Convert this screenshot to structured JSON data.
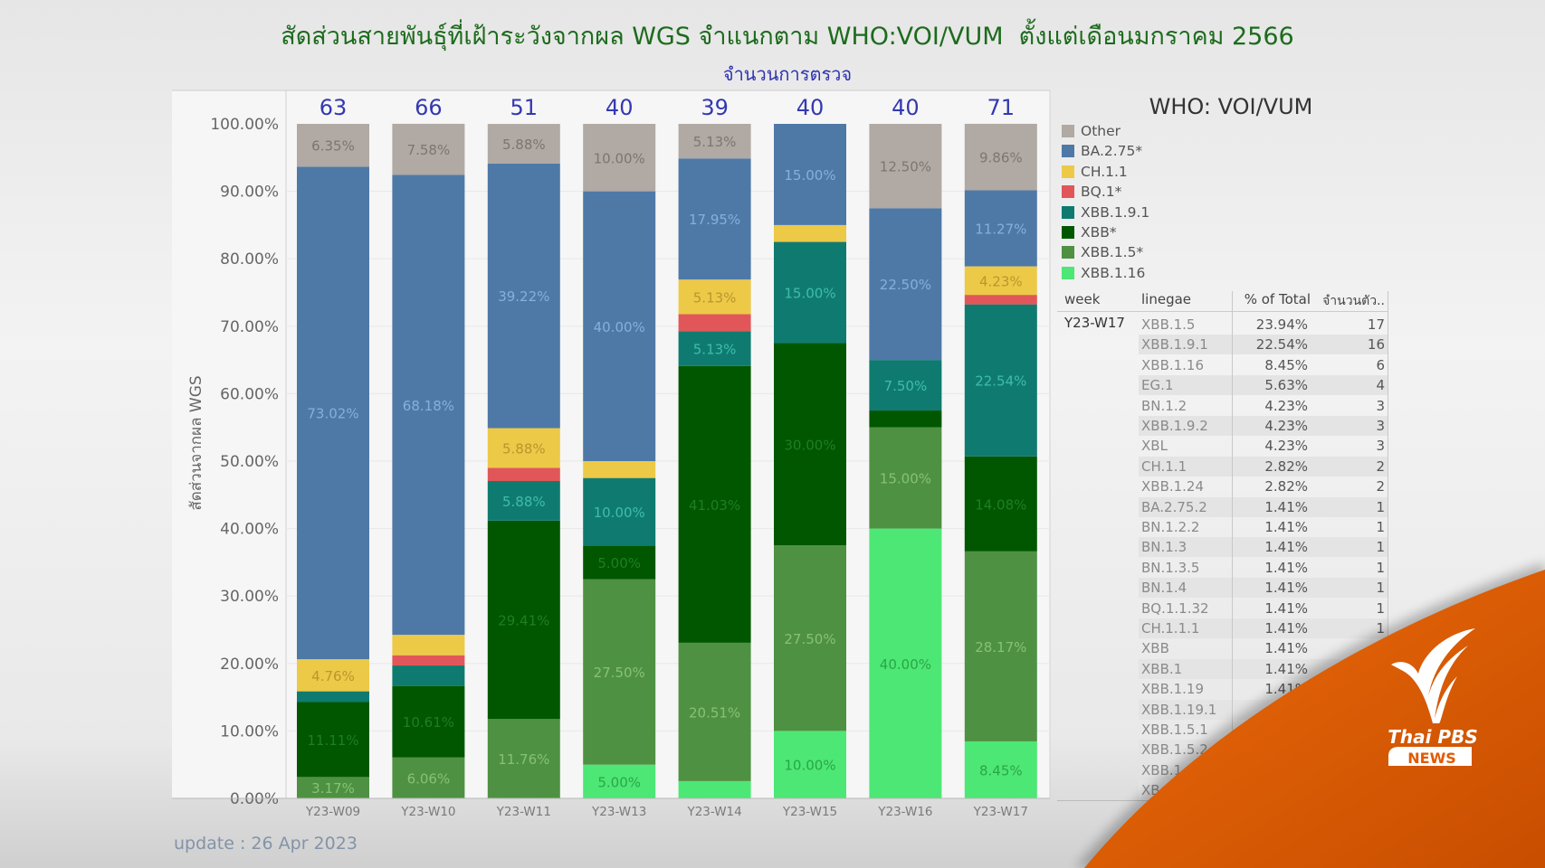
{
  "chart_data": {
    "type": "bar",
    "stacked": true,
    "title": "สัดส่วนสายพันธุ์ที่เฝ้าระวังจากผล WGS จำแนกตาม WHO:VOI/VUM  ตั้งแต่เดือนมกราคม 2566",
    "subtitle": "จำนวนการตรวจ",
    "ylabel": "สัดส่วนจากผล WGS",
    "xlabel": "",
    "ylim": [
      0,
      100
    ],
    "yticks": [
      "0.00%",
      "10.00%",
      "20.00%",
      "30.00%",
      "40.00%",
      "50.00%",
      "60.00%",
      "70.00%",
      "80.00%",
      "90.00%",
      "100.00%"
    ],
    "grid": true,
    "legend_position": "right",
    "legend_title": "WHO: VOI/VUM",
    "categories": [
      "Y23-W09",
      "Y23-W10",
      "Y23-W11",
      "Y23-W13",
      "Y23-W14",
      "Y23-W15",
      "Y23-W16",
      "Y23-W17"
    ],
    "counts": [
      "63",
      "66",
      "51",
      "40",
      "39",
      "40",
      "40",
      "71"
    ],
    "series": [
      {
        "name": "XBB.1.16",
        "color": "#4de775",
        "label_color": "#2aa646",
        "values": [
          0,
          0,
          0,
          5.0,
          2.56,
          10.0,
          40.0,
          8.45
        ],
        "labels": [
          null,
          null,
          null,
          "5.00%",
          null,
          "10.00%",
          "40.00%",
          "8.45%"
        ]
      },
      {
        "name": "XBB.1.5*",
        "color": "#4f9142",
        "label_color": "#86c274",
        "values": [
          3.17,
          6.06,
          11.76,
          27.5,
          20.51,
          27.5,
          15.0,
          28.17
        ],
        "labels": [
          "3.17%",
          "6.06%",
          "11.76%",
          "27.50%",
          "20.51%",
          "27.50%",
          "15.00%",
          "28.17%"
        ]
      },
      {
        "name": "XBB*",
        "color": "#005700",
        "label_color": "#1f7f1f",
        "values": [
          11.11,
          10.61,
          29.41,
          5.0,
          41.03,
          30.0,
          2.5,
          14.08
        ],
        "labels": [
          "11.11%",
          "10.61%",
          "29.41%",
          "5.00%",
          "41.03%",
          "30.00%",
          null,
          "14.08%"
        ]
      },
      {
        "name": "XBB.1.9.1",
        "color": "#0f7b70",
        "label_color": "#3fbcaa",
        "values": [
          1.59,
          3.03,
          5.88,
          10.0,
          5.13,
          15.0,
          7.5,
          22.54
        ],
        "labels": [
          null,
          null,
          "5.88%",
          "10.00%",
          "5.13%",
          "15.00%",
          "7.50%",
          "22.54%"
        ]
      },
      {
        "name": "BQ.1*",
        "color": "#e15759",
        "label_color": "#f4a0a0",
        "values": [
          0,
          1.52,
          1.96,
          0,
          2.56,
          0,
          0,
          1.41
        ],
        "labels": [
          null,
          null,
          null,
          null,
          null,
          null,
          null,
          null
        ]
      },
      {
        "name": "CH.1.1",
        "color": "#edc948",
        "label_color": "#b8972c",
        "values": [
          4.76,
          3.03,
          5.88,
          2.5,
          5.13,
          2.5,
          0,
          4.23
        ],
        "labels": [
          "4.76%",
          null,
          "5.88%",
          null,
          "5.13%",
          null,
          null,
          "4.23%"
        ]
      },
      {
        "name": "BA.2.75*",
        "color": "#4e79a7",
        "label_color": "#86aedd",
        "values": [
          73.02,
          68.18,
          39.22,
          40.0,
          17.95,
          15.0,
          22.5,
          11.27
        ],
        "labels": [
          "73.02%",
          "68.18%",
          "39.22%",
          "40.00%",
          "17.95%",
          "15.00%",
          "22.50%",
          "11.27%"
        ]
      },
      {
        "name": "Other",
        "color": "#b0a9a4",
        "label_color": "#7c7672",
        "values": [
          6.35,
          7.58,
          5.88,
          10.0,
          5.13,
          0,
          12.5,
          9.86
        ],
        "labels": [
          "6.35%",
          "7.58%",
          "5.88%",
          "10.00%",
          "5.13%",
          null,
          "12.50%",
          "9.86%"
        ]
      }
    ],
    "legend": [
      {
        "name": "Other",
        "color": "#b0a9a4"
      },
      {
        "name": "BA.2.75*",
        "color": "#4e79a7"
      },
      {
        "name": "CH.1.1",
        "color": "#edc948"
      },
      {
        "name": "BQ.1*",
        "color": "#e15759"
      },
      {
        "name": "XBB.1.9.1",
        "color": "#0f7b70"
      },
      {
        "name": "XBB*",
        "color": "#005700"
      },
      {
        "name": "XBB.1.5*",
        "color": "#4f9142"
      },
      {
        "name": "XBB.1.16",
        "color": "#4de775"
      }
    ]
  },
  "table": {
    "headers": {
      "week": "week",
      "lineage": "linegae",
      "pct": "% of Total",
      "count": "จำนวนตัว.."
    },
    "week": "Y23-W17",
    "rows": [
      {
        "lineage": "XBB.1.5",
        "pct": "23.94%",
        "count": "17"
      },
      {
        "lineage": "XBB.1.9.1",
        "pct": "22.54%",
        "count": "16"
      },
      {
        "lineage": "XBB.1.16",
        "pct": "8.45%",
        "count": "6"
      },
      {
        "lineage": "EG.1",
        "pct": "5.63%",
        "count": "4"
      },
      {
        "lineage": "BN.1.2",
        "pct": "4.23%",
        "count": "3"
      },
      {
        "lineage": "XBB.1.9.2",
        "pct": "4.23%",
        "count": "3"
      },
      {
        "lineage": "XBL",
        "pct": "4.23%",
        "count": "3"
      },
      {
        "lineage": "CH.1.1",
        "pct": "2.82%",
        "count": "2"
      },
      {
        "lineage": "XBB.1.24",
        "pct": "2.82%",
        "count": "2"
      },
      {
        "lineage": "BA.2.75.2",
        "pct": "1.41%",
        "count": "1"
      },
      {
        "lineage": "BN.1.2.2",
        "pct": "1.41%",
        "count": "1"
      },
      {
        "lineage": "BN.1.3",
        "pct": "1.41%",
        "count": "1"
      },
      {
        "lineage": "BN.1.3.5",
        "pct": "1.41%",
        "count": "1"
      },
      {
        "lineage": "BN.1.4",
        "pct": "1.41%",
        "count": "1"
      },
      {
        "lineage": "BQ.1.1.32",
        "pct": "1.41%",
        "count": "1"
      },
      {
        "lineage": "CH.1.1.1",
        "pct": "1.41%",
        "count": "1"
      },
      {
        "lineage": "XBB",
        "pct": "1.41%",
        "count": ""
      },
      {
        "lineage": "XBB.1",
        "pct": "1.41%",
        "count": ""
      },
      {
        "lineage": "XBB.1.19",
        "pct": "1.41%",
        "count": ""
      },
      {
        "lineage": "XBB.1.19.1",
        "pct": "",
        "count": ""
      },
      {
        "lineage": "XBB.1.5.1",
        "pct": "",
        "count": ""
      },
      {
        "lineage": "XBB.1.5.2",
        "pct": "",
        "count": ""
      },
      {
        "lineage": "XBB.1",
        "pct": "",
        "count": ""
      },
      {
        "lineage": "XB",
        "pct": "",
        "count": ""
      }
    ]
  },
  "footer": {
    "update": "update : 26 Apr 2023"
  },
  "logo": {
    "text": "Thai PBS",
    "sub": "NEWS",
    "color": "#e35a00"
  }
}
